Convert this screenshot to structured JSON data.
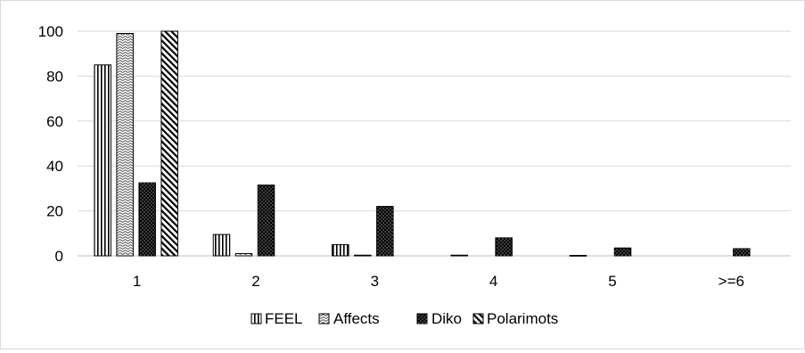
{
  "chart_data": {
    "type": "bar",
    "title": "",
    "xlabel": "",
    "ylabel": "",
    "categories": [
      "1",
      "2",
      "3",
      "4",
      "5",
      ">=6"
    ],
    "ylim": [
      0,
      100
    ],
    "yticks": [
      0,
      20,
      40,
      60,
      80,
      100
    ],
    "grid": true,
    "legend_position": "bottom",
    "series": [
      {
        "name": "FEEL",
        "pattern": "vertical-lines",
        "values": [
          85,
          9.5,
          5,
          0.3,
          0.2,
          0
        ]
      },
      {
        "name": "Affects",
        "pattern": "dotted-light",
        "values": [
          99,
          1,
          0.3,
          0,
          0,
          0
        ]
      },
      {
        "name": "Diko",
        "pattern": "dotted-dark",
        "values": [
          32.5,
          31.5,
          22,
          8,
          3.5,
          3.2
        ]
      },
      {
        "name": "Polarimots",
        "pattern": "diagonal-lines",
        "values": [
          100,
          0,
          0,
          0,
          0,
          0
        ]
      }
    ],
    "colors": {
      "bar_stroke": "#000000",
      "grid": "#d9d9d9",
      "axis": "#bfbfbf"
    }
  }
}
